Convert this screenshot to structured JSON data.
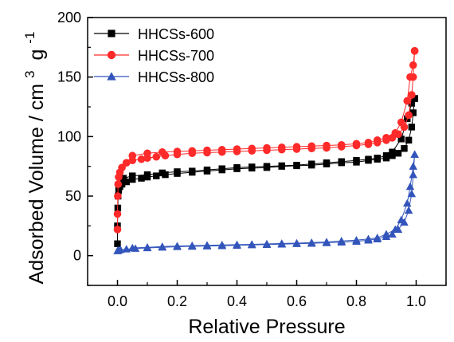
{
  "chart_data": {
    "type": "scatter",
    "xlabel": "Relative Pressure",
    "ylabel": {
      "main": "Adsorbed Volume / cm",
      "sup1": "3",
      "g": "g",
      "sup2": "-1"
    },
    "xlim": [
      -0.1,
      1.1
    ],
    "ylim": [
      -25,
      200
    ],
    "xticks": [
      0.0,
      0.2,
      0.4,
      0.6,
      0.8,
      1.0
    ],
    "xtick_labels": [
      "0.0",
      "0.2",
      "0.4",
      "0.6",
      "0.8",
      "1.0"
    ],
    "yticks": [
      0,
      50,
      100,
      150,
      200
    ],
    "ytick_labels": [
      "0",
      "50",
      "100",
      "150",
      "200"
    ],
    "grid": false,
    "legend_position": "top-left",
    "series": [
      {
        "name": "HHCSs-600",
        "color": "#000000",
        "marker": "square",
        "adsorption": [
          [
            0.0,
            10
          ],
          [
            0.0,
            25
          ],
          [
            0.001,
            40
          ],
          [
            0.002,
            50
          ],
          [
            0.004,
            55
          ],
          [
            0.008,
            58
          ],
          [
            0.015,
            60
          ],
          [
            0.03,
            62
          ],
          [
            0.05,
            64
          ],
          [
            0.08,
            65
          ],
          [
            0.1,
            66
          ],
          [
            0.13,
            67
          ],
          [
            0.16,
            68
          ],
          [
            0.2,
            69
          ],
          [
            0.25,
            70
          ],
          [
            0.3,
            71
          ],
          [
            0.35,
            72
          ],
          [
            0.4,
            73
          ],
          [
            0.45,
            73.5
          ],
          [
            0.5,
            74
          ],
          [
            0.55,
            75
          ],
          [
            0.6,
            75.5
          ],
          [
            0.65,
            76
          ],
          [
            0.7,
            77
          ],
          [
            0.75,
            78
          ],
          [
            0.8,
            78.5
          ],
          [
            0.84,
            80
          ],
          [
            0.87,
            81
          ],
          [
            0.9,
            82
          ],
          [
            0.92,
            84
          ],
          [
            0.94,
            86
          ],
          [
            0.96,
            90
          ],
          [
            0.975,
            97
          ],
          [
            0.985,
            108
          ],
          [
            0.99,
            120
          ],
          [
            0.995,
            132
          ]
        ],
        "desorption": [
          [
            0.995,
            132
          ],
          [
            0.985,
            128
          ],
          [
            0.97,
            115
          ],
          [
            0.95,
            98
          ],
          [
            0.92,
            87
          ],
          [
            0.9,
            84
          ],
          [
            0.87,
            82
          ],
          [
            0.84,
            81
          ],
          [
            0.8,
            80
          ],
          [
            0.75,
            79
          ],
          [
            0.7,
            78
          ],
          [
            0.65,
            77
          ],
          [
            0.6,
            76
          ],
          [
            0.55,
            75.5
          ],
          [
            0.5,
            75
          ],
          [
            0.45,
            74.5
          ],
          [
            0.4,
            74
          ],
          [
            0.35,
            73
          ],
          [
            0.3,
            72
          ],
          [
            0.25,
            71
          ],
          [
            0.2,
            70.5
          ],
          [
            0.15,
            69.5
          ],
          [
            0.1,
            68
          ],
          [
            0.05,
            67
          ],
          [
            0.02,
            65
          ]
        ]
      },
      {
        "name": "HHCSs-700",
        "color": "#ff2a2a",
        "marker": "circle",
        "adsorption": [
          [
            0.0,
            22
          ],
          [
            0.0,
            35
          ],
          [
            0.001,
            50
          ],
          [
            0.002,
            60
          ],
          [
            0.004,
            66
          ],
          [
            0.008,
            70
          ],
          [
            0.015,
            74
          ],
          [
            0.03,
            78
          ],
          [
            0.05,
            80
          ],
          [
            0.08,
            81
          ],
          [
            0.1,
            82
          ],
          [
            0.13,
            83
          ],
          [
            0.16,
            84
          ],
          [
            0.2,
            85
          ],
          [
            0.25,
            86
          ],
          [
            0.3,
            86.5
          ],
          [
            0.35,
            87
          ],
          [
            0.4,
            87.5
          ],
          [
            0.45,
            88
          ],
          [
            0.5,
            88.5
          ],
          [
            0.55,
            89
          ],
          [
            0.6,
            89.5
          ],
          [
            0.65,
            90
          ],
          [
            0.7,
            90.5
          ],
          [
            0.75,
            91.5
          ],
          [
            0.8,
            92.5
          ],
          [
            0.84,
            93.5
          ],
          [
            0.87,
            95
          ],
          [
            0.9,
            97
          ],
          [
            0.92,
            99
          ],
          [
            0.94,
            102
          ],
          [
            0.96,
            108
          ],
          [
            0.975,
            118
          ],
          [
            0.985,
            135
          ],
          [
            0.99,
            150
          ],
          [
            0.995,
            172
          ]
        ],
        "desorption": [
          [
            0.995,
            172
          ],
          [
            0.99,
            160
          ],
          [
            0.98,
            150
          ],
          [
            0.97,
            130
          ],
          [
            0.95,
            112
          ],
          [
            0.93,
            103
          ],
          [
            0.9,
            99
          ],
          [
            0.87,
            97
          ],
          [
            0.84,
            95
          ],
          [
            0.8,
            94
          ],
          [
            0.75,
            93
          ],
          [
            0.7,
            92.5
          ],
          [
            0.65,
            92
          ],
          [
            0.6,
            91.5
          ],
          [
            0.55,
            91
          ],
          [
            0.5,
            90.5
          ],
          [
            0.45,
            90
          ],
          [
            0.4,
            89.5
          ],
          [
            0.35,
            89
          ],
          [
            0.3,
            88.5
          ],
          [
            0.25,
            88
          ],
          [
            0.2,
            87.5
          ],
          [
            0.15,
            87
          ],
          [
            0.1,
            86
          ],
          [
            0.05,
            84
          ]
        ]
      },
      {
        "name": "HHCSs-800",
        "color": "#3355bb",
        "marker": "triangle",
        "adsorption": [
          [
            0.0,
            4
          ],
          [
            0.003,
            4.5
          ],
          [
            0.01,
            5
          ],
          [
            0.03,
            5.5
          ],
          [
            0.06,
            6
          ],
          [
            0.1,
            6.5
          ],
          [
            0.15,
            7
          ],
          [
            0.2,
            7.5
          ],
          [
            0.25,
            7.8
          ],
          [
            0.3,
            8
          ],
          [
            0.35,
            8.3
          ],
          [
            0.4,
            8.6
          ],
          [
            0.45,
            9
          ],
          [
            0.5,
            9.3
          ],
          [
            0.55,
            9.6
          ],
          [
            0.6,
            10
          ],
          [
            0.65,
            10.3
          ],
          [
            0.7,
            10.8
          ],
          [
            0.75,
            11.3
          ],
          [
            0.8,
            12
          ],
          [
            0.84,
            13
          ],
          [
            0.87,
            14
          ],
          [
            0.9,
            16
          ],
          [
            0.92,
            18
          ],
          [
            0.94,
            22
          ],
          [
            0.96,
            28
          ],
          [
            0.975,
            38
          ],
          [
            0.985,
            52
          ],
          [
            0.99,
            68
          ],
          [
            0.995,
            85
          ]
        ],
        "desorption": [
          [
            0.995,
            85
          ],
          [
            0.99,
            75
          ],
          [
            0.98,
            58
          ],
          [
            0.97,
            44
          ],
          [
            0.95,
            30
          ],
          [
            0.93,
            22
          ],
          [
            0.9,
            18
          ],
          [
            0.87,
            15
          ],
          [
            0.84,
            14
          ],
          [
            0.8,
            13
          ],
          [
            0.75,
            12.3
          ],
          [
            0.7,
            11.5
          ],
          [
            0.65,
            11
          ],
          [
            0.6,
            10.5
          ],
          [
            0.55,
            10.2
          ],
          [
            0.5,
            9.8
          ],
          [
            0.45,
            9.5
          ],
          [
            0.4,
            9.2
          ],
          [
            0.35,
            9
          ],
          [
            0.3,
            8.7
          ],
          [
            0.25,
            8.4
          ],
          [
            0.2,
            8.1
          ],
          [
            0.15,
            7.6
          ],
          [
            0.1,
            7
          ],
          [
            0.05,
            6.5
          ]
        ]
      }
    ]
  }
}
